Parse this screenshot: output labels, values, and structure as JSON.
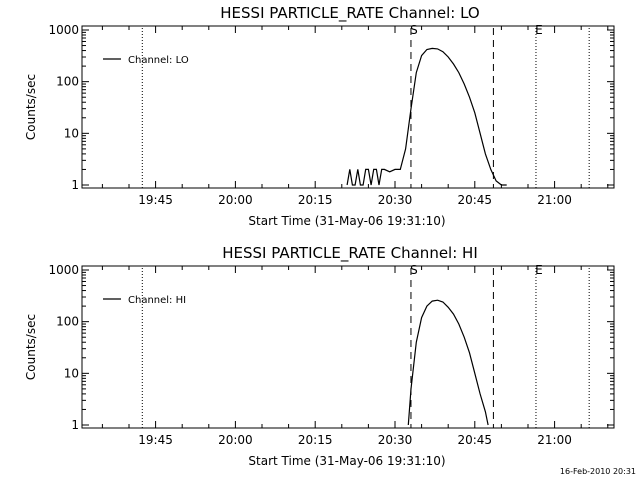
{
  "chart_data": [
    {
      "type": "line",
      "title": "HESSI PARTICLE_RATE Channel: LO",
      "xlabel": "Start Time (31-May-06 19:31:10)",
      "ylabel": "Counts/sec",
      "x_ticks": [
        "19:45",
        "20:00",
        "20:15",
        "20:30",
        "20:45",
        "21:00"
      ],
      "y_ticks": [
        "1",
        "10",
        "100",
        "1000"
      ],
      "y_scale": "log",
      "ylim": [
        1,
        1000
      ],
      "xlim": [
        "19:31:10",
        "21:11:10"
      ],
      "legend": "top-left",
      "grid": false,
      "series": [
        {
          "name": "Channel: LO",
          "x": [
            "20:21:00",
            "20:21:30",
            "20:22:00",
            "20:22:30",
            "20:23:00",
            "20:23:30",
            "20:24:00",
            "20:24:30",
            "20:25:00",
            "20:25:30",
            "20:26:00",
            "20:26:30",
            "20:27:00",
            "20:27:30",
            "20:28:00",
            "20:29:00",
            "20:30:00",
            "20:31:00",
            "20:32:00",
            "20:33:00",
            "20:34:00",
            "20:35:00",
            "20:36:00",
            "20:37:00",
            "20:38:00",
            "20:39:00",
            "20:40:00",
            "20:41:00",
            "20:42:00",
            "20:43:00",
            "20:44:00",
            "20:45:00",
            "20:46:00",
            "20:47:00",
            "20:48:00",
            "20:49:00",
            "20:50:00",
            "20:51:00"
          ],
          "values": [
            1,
            2,
            1,
            1,
            2,
            1,
            1,
            2,
            2,
            1,
            2,
            2,
            1,
            2,
            2,
            1.8,
            2,
            2,
            5,
            30,
            150,
            320,
            420,
            440,
            430,
            380,
            300,
            220,
            150,
            90,
            50,
            25,
            10,
            4,
            2,
            1.2,
            1,
            1
          ]
        }
      ],
      "markers": [
        {
          "label": "S",
          "time": "20:33:00",
          "style": "dashed"
        },
        {
          "label": "",
          "time": "20:48:30",
          "style": "dashed"
        },
        {
          "label": "",
          "time": "19:42:30",
          "style": "dotted"
        },
        {
          "label": "E",
          "time": "20:56:30",
          "style": "dotted"
        },
        {
          "label": "",
          "time": "21:06:30",
          "style": "dotted"
        }
      ]
    },
    {
      "type": "line",
      "title": "HESSI PARTICLE_RATE Channel: HI",
      "xlabel": "Start Time (31-May-06 19:31:10)",
      "ylabel": "Counts/sec",
      "x_ticks": [
        "19:45",
        "20:00",
        "20:15",
        "20:30",
        "20:45",
        "21:00"
      ],
      "y_ticks": [
        "1",
        "10",
        "100",
        "1000"
      ],
      "y_scale": "log",
      "ylim": [
        1,
        1000
      ],
      "xlim": [
        "19:31:10",
        "21:11:10"
      ],
      "legend": "top-left",
      "grid": false,
      "series": [
        {
          "name": "Channel: HI",
          "x": [
            "20:32:30",
            "20:33:00",
            "20:34:00",
            "20:35:00",
            "20:36:00",
            "20:37:00",
            "20:38:00",
            "20:39:00",
            "20:40:00",
            "20:41:00",
            "20:42:00",
            "20:43:00",
            "20:44:00",
            "20:45:00",
            "20:46:00",
            "20:47:00",
            "20:47:30"
          ],
          "values": [
            1,
            5,
            40,
            120,
            200,
            250,
            260,
            240,
            190,
            140,
            90,
            50,
            25,
            10,
            4,
            1.8,
            1
          ]
        }
      ],
      "markers": [
        {
          "label": "S",
          "time": "20:33:00",
          "style": "dashed"
        },
        {
          "label": "",
          "time": "20:48:30",
          "style": "dashed"
        },
        {
          "label": "",
          "time": "19:42:30",
          "style": "dotted"
        },
        {
          "label": "E",
          "time": "20:56:30",
          "style": "dotted"
        },
        {
          "label": "",
          "time": "21:06:30",
          "style": "dotted"
        }
      ]
    }
  ],
  "footer": {
    "timestamp": "16-Feb-2010 20:31"
  }
}
